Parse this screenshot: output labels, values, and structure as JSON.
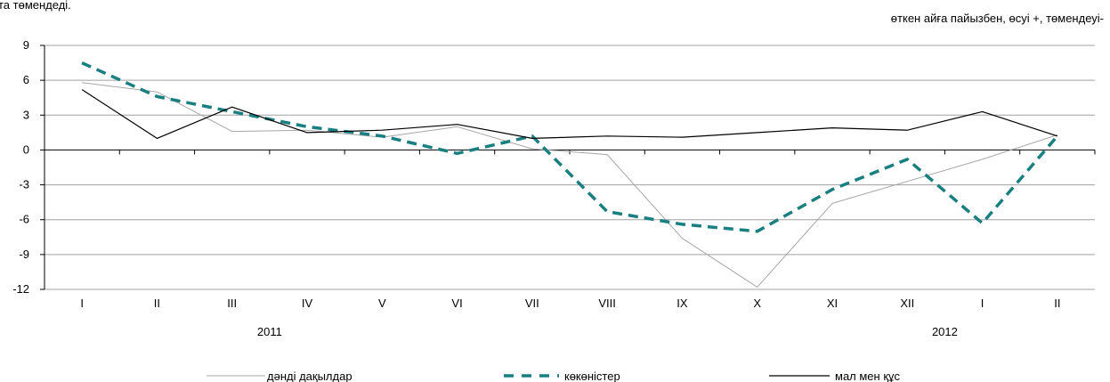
{
  "header_fragment": "та төмендеді.",
  "chart_data": {
    "type": "line",
    "title": "",
    "subtitle": "өткен айға пайызбен, өсуі +, төмендеуі-",
    "xlabel": "",
    "ylabel": "",
    "categories": [
      "I",
      "II",
      "III",
      "IV",
      "V",
      "VI",
      "VII",
      "VIII",
      "IX",
      "X",
      "XI",
      "XII",
      "I",
      "II"
    ],
    "year_labels": [
      {
        "label": "2011",
        "category_index": 3
      },
      {
        "label": "2012",
        "category_index": 12
      }
    ],
    "ylim": [
      -12,
      9
    ],
    "yticks": [
      9,
      6,
      3,
      0,
      -3,
      -6,
      -9,
      -12
    ],
    "grid": true,
    "legend_position": "bottom",
    "series": [
      {
        "name": "дәнді дақылдар",
        "color": "#a6a6a6",
        "style": "thin-solid",
        "values": [
          5.8,
          5.0,
          1.6,
          1.7,
          1.1,
          2.0,
          0.1,
          -0.4,
          -7.6,
          -11.8,
          -4.6,
          -2.7,
          -0.8,
          1.3
        ]
      },
      {
        "name": "көкөністер",
        "color": "#1a7f80",
        "style": "dashed",
        "values": [
          7.5,
          4.6,
          3.3,
          2.0,
          1.2,
          -0.3,
          1.2,
          -5.3,
          -6.4,
          -7.0,
          -3.4,
          -0.8,
          -6.3,
          1.2
        ]
      },
      {
        "name": "мал мен құс",
        "color": "#000000",
        "style": "solid",
        "values": [
          5.2,
          1.0,
          3.7,
          1.5,
          1.7,
          2.2,
          1.0,
          1.2,
          1.1,
          1.5,
          1.9,
          1.7,
          3.3,
          1.2
        ]
      }
    ]
  }
}
